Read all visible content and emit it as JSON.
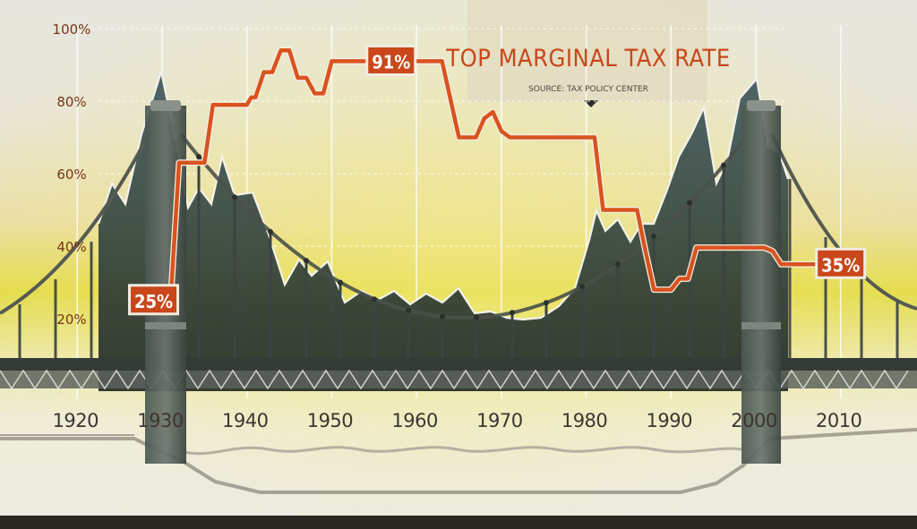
{
  "chart_data": {
    "type": "line",
    "title": "TOP MARGINAL TAX RATE",
    "subtitle": "SOURCE: TAX POLICY CENTER",
    "xlabel": "",
    "ylabel": "",
    "xlim": [
      1913,
      2017
    ],
    "ylim": [
      0,
      100
    ],
    "y_ticks": [
      {
        "value": 20,
        "label": "20%"
      },
      {
        "value": 40,
        "label": "40%"
      },
      {
        "value": 60,
        "label": "60%"
      },
      {
        "value": 80,
        "label": "80%"
      },
      {
        "value": 100,
        "label": "100%"
      }
    ],
    "x_ticks": [
      {
        "value": 1920,
        "label": "1920"
      },
      {
        "value": 1930,
        "label": "1930"
      },
      {
        "value": 1940,
        "label": "1940"
      },
      {
        "value": 1950,
        "label": "1950"
      },
      {
        "value": 1960,
        "label": "1960"
      },
      {
        "value": 1970,
        "label": "1970"
      },
      {
        "value": 1980,
        "label": "1980"
      },
      {
        "value": 1990,
        "label": "1990"
      },
      {
        "value": 2000,
        "label": "2000"
      },
      {
        "value": 2010,
        "label": "2010"
      }
    ],
    "series": [
      {
        "name": "Top marginal tax rate",
        "color": "#d9531e",
        "points": [
          [
            1929,
            25
          ],
          [
            1931,
            25
          ],
          [
            1932,
            63
          ],
          [
            1935,
            63
          ],
          [
            1936,
            79
          ],
          [
            1940,
            79
          ],
          [
            1940.5,
            81
          ],
          [
            1941,
            81
          ],
          [
            1942,
            88
          ],
          [
            1943,
            88
          ],
          [
            1944,
            94
          ],
          [
            1945,
            94
          ],
          [
            1946,
            86.45
          ],
          [
            1947,
            86.45
          ],
          [
            1948,
            82.13
          ],
          [
            1949,
            82.13
          ],
          [
            1950,
            91
          ],
          [
            1963,
            91
          ],
          [
            1965,
            70
          ],
          [
            1967,
            70
          ],
          [
            1968,
            75.25
          ],
          [
            1969,
            77
          ],
          [
            1970,
            71.75
          ],
          [
            1971,
            70
          ],
          [
            1981,
            70
          ],
          [
            1982,
            50
          ],
          [
            1986,
            50
          ],
          [
            1987,
            38.5
          ],
          [
            1988,
            28
          ],
          [
            1990,
            28
          ],
          [
            1991,
            31
          ],
          [
            1992,
            31
          ],
          [
            1993,
            39.6
          ],
          [
            2001,
            39.6
          ],
          [
            2002,
            38.6
          ],
          [
            2003,
            35
          ],
          [
            2010,
            35
          ]
        ],
        "labels": [
          {
            "x": 1929,
            "y": 25,
            "text": "25%"
          },
          {
            "x": 1957,
            "y": 91,
            "text": "91%"
          },
          {
            "x": 2010,
            "y": 35,
            "text": "35%"
          }
        ]
      }
    ]
  },
  "colors": {
    "line": "#d9531e",
    "label_bg": "#c9471a",
    "axis_text": "#7a3418",
    "year_text": "#3b3630",
    "mountain_fill": "#2f3f3e",
    "bridge": "#3b4442"
  }
}
